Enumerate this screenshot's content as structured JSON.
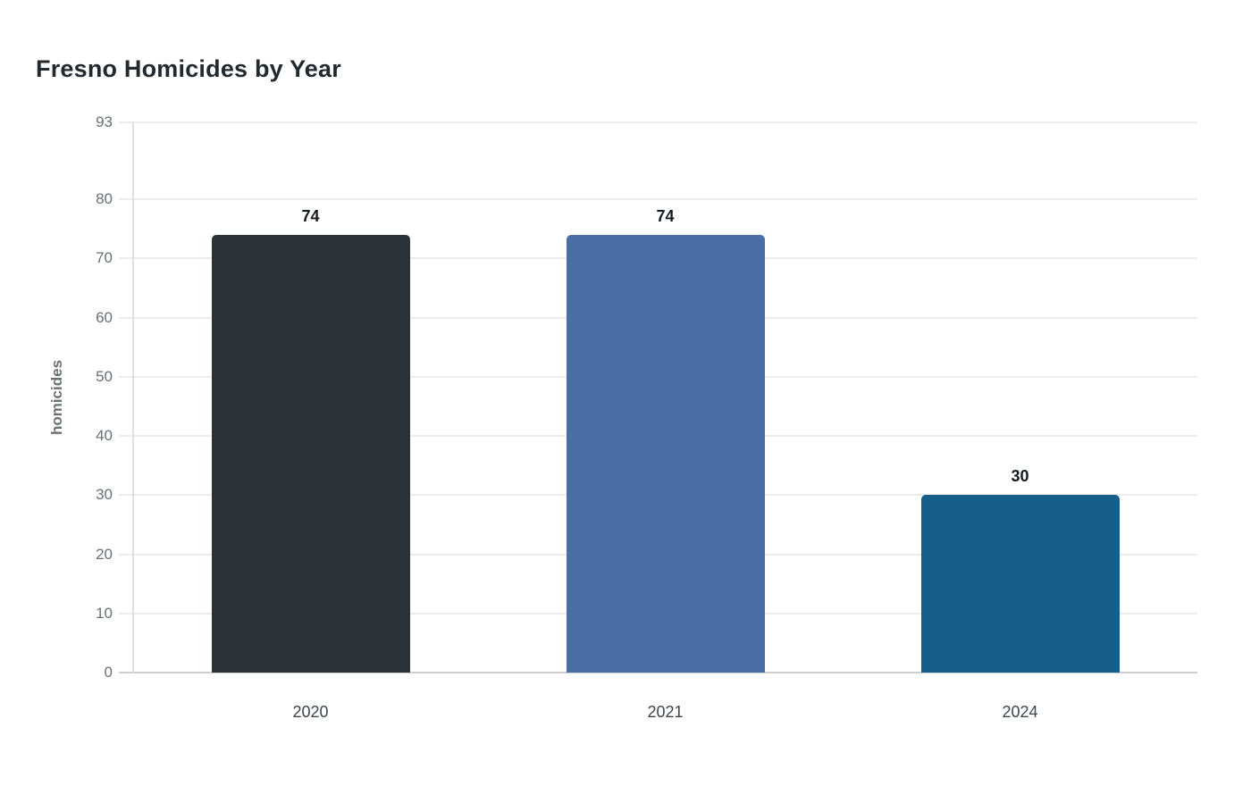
{
  "page": {
    "background_color": "#ffffff"
  },
  "chart_data": {
    "type": "bar",
    "title": "Fresno Homicides by Year",
    "xlabel": "",
    "ylabel": "homicides",
    "categories": [
      "2020",
      "2021",
      "2024"
    ],
    "values": [
      74,
      74,
      30
    ],
    "value_labels": [
      "74",
      "74",
      "30"
    ],
    "bar_colors": [
      "#2b3339",
      "#4a6fa6",
      "#165f88"
    ],
    "yticks": [
      0,
      10,
      20,
      30,
      40,
      50,
      60,
      70,
      80,
      93
    ],
    "ylim": [
      0,
      93
    ],
    "grid": "horizontal",
    "legend": "none"
  },
  "style_colors": {
    "title_color": "#222a30",
    "tick_label_color": "#697077",
    "x_tick_label_color": "#3d464e",
    "value_label_color": "#131b20",
    "gridline_color": "#ececec",
    "baseline_color": "#cfcfcf",
    "axis_line_color": "#dfdfdf"
  }
}
